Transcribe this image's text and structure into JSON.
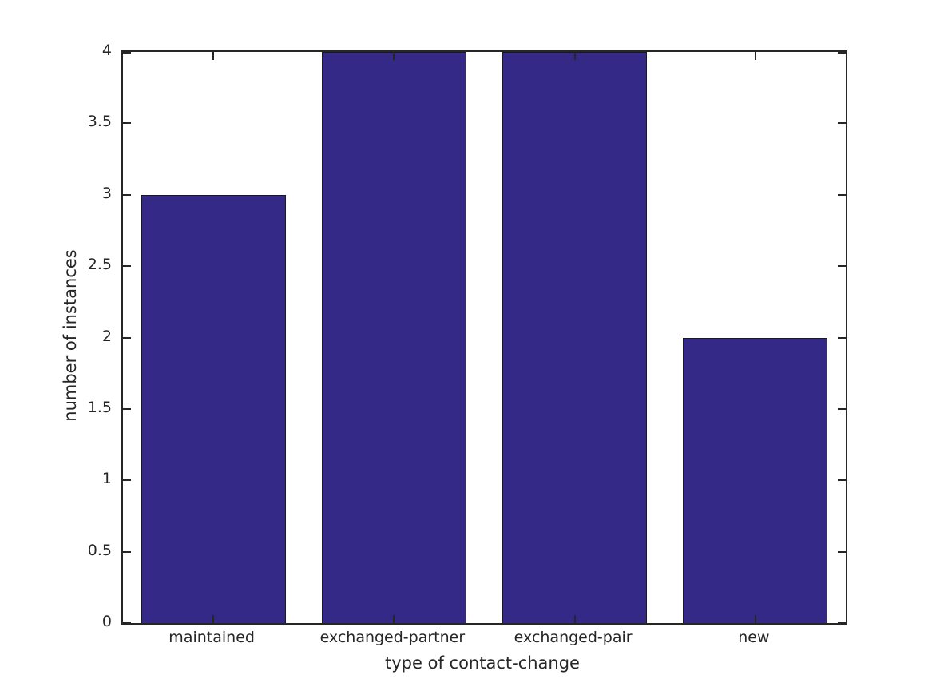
{
  "chart_data": {
    "type": "bar",
    "categories": [
      "maintained",
      "exchanged-partner",
      "exchanged-pair",
      "new"
    ],
    "values": [
      3,
      4,
      4,
      2
    ],
    "xlabel": "type of contact-change",
    "ylabel": "number of instances",
    "ylim": [
      0,
      4
    ],
    "yticks": [
      0,
      0.5,
      1,
      1.5,
      2,
      2.5,
      3,
      3.5,
      4
    ],
    "ytick_labels": [
      "0",
      "0.5",
      "1",
      "1.5",
      "2",
      "2.5",
      "3",
      "3.5",
      "4"
    ],
    "bar_width_fraction": 0.8,
    "bar_color": "#352987",
    "bar_edge_color": "#1a1a1a",
    "axis_color": "#262626",
    "text_color": "#262626",
    "grid": false,
    "box": true,
    "tick_direction": "in",
    "legend_position": "none"
  }
}
